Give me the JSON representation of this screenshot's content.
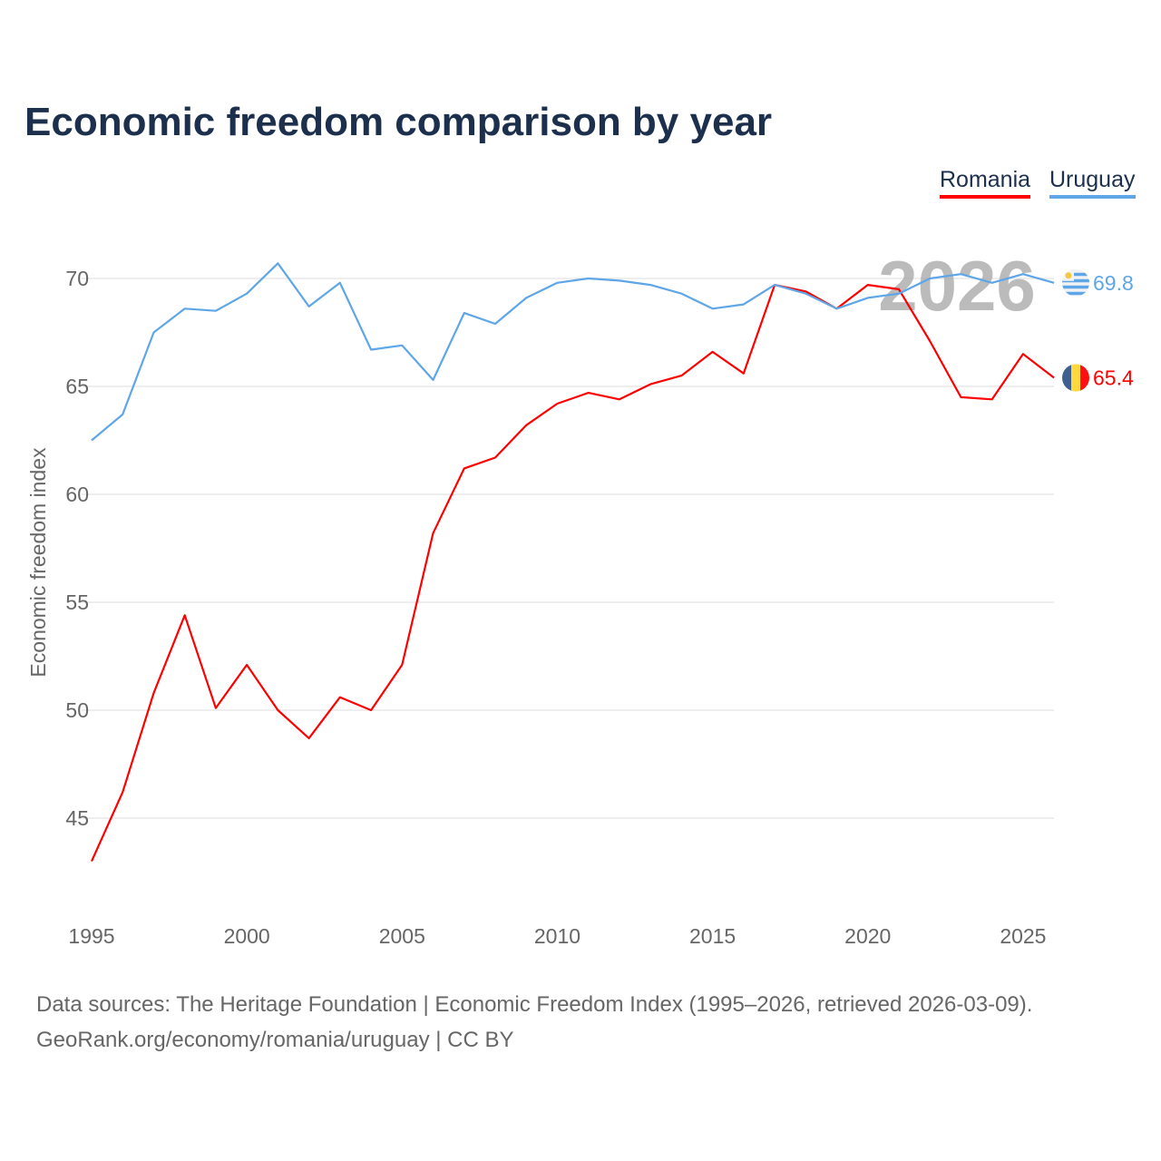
{
  "title": "Economic freedom comparison by year",
  "legend": [
    "Romania",
    "Uruguay"
  ],
  "footer": {
    "line1": "Data sources: The Heritage Foundation | Economic Freedom Index (1995–2026, retrieved 2026-03-09).",
    "line2": "GeoRank.org/economy/romania/uruguay | CC BY"
  },
  "chart_data": {
    "type": "line",
    "title": "Economic freedom comparison by year",
    "ylabel": "Economic freedom index",
    "xlabel": "",
    "year_label": "2026",
    "ylim": [
      42,
      72.5
    ],
    "xlim": [
      1995,
      2026
    ],
    "yticks": [
      45,
      50,
      55,
      60,
      65,
      70
    ],
    "xticks": [
      1995,
      2000,
      2005,
      2010,
      2015,
      2020,
      2025
    ],
    "grid": true,
    "legend_position": "top-right",
    "x": [
      1995,
      1996,
      1997,
      1998,
      1999,
      2000,
      2001,
      2002,
      2003,
      2004,
      2005,
      2006,
      2007,
      2008,
      2009,
      2010,
      2011,
      2012,
      2013,
      2014,
      2015,
      2016,
      2017,
      2018,
      2019,
      2020,
      2021,
      2022,
      2023,
      2024,
      2025,
      2026
    ],
    "series": [
      {
        "name": "Romania",
        "color": "#ff0000",
        "end_label": "65.4",
        "values": [
          43.0,
          46.2,
          50.8,
          54.4,
          50.1,
          52.1,
          50.0,
          48.7,
          50.6,
          50.0,
          52.1,
          58.2,
          61.2,
          61.7,
          63.2,
          64.2,
          64.7,
          64.4,
          65.1,
          65.5,
          66.6,
          65.6,
          69.7,
          69.4,
          68.6,
          69.7,
          69.5,
          67.1,
          64.5,
          64.4,
          66.5,
          65.4
        ]
      },
      {
        "name": "Uruguay",
        "color": "#5ea6e8",
        "end_label": "69.8",
        "values": [
          62.5,
          63.7,
          67.5,
          68.6,
          68.5,
          69.3,
          70.7,
          68.7,
          69.8,
          66.7,
          66.9,
          65.3,
          68.4,
          67.9,
          69.1,
          69.8,
          70.0,
          69.9,
          69.7,
          69.3,
          68.6,
          68.8,
          69.7,
          69.3,
          68.6,
          69.1,
          69.3,
          70.0,
          70.2,
          69.8,
          70.2,
          69.8
        ]
      }
    ]
  }
}
